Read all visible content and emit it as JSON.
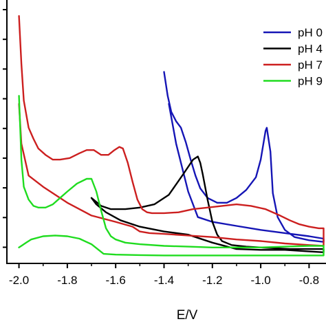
{
  "chart_data": {
    "type": "line",
    "title": "",
    "xlabel": "E/V",
    "ylabel": "",
    "xlim": [
      -2.05,
      -0.73
    ],
    "ylim": [
      0,
      16.5
    ],
    "x_ticks": [
      -2.0,
      -1.8,
      -1.6,
      -1.4,
      -1.2,
      -1.0,
      -0.8
    ],
    "x_tick_labels": [
      "-2.0",
      "-1.8",
      "-1.6",
      "-1.4",
      "-1.2",
      "-1.0",
      "-0.8"
    ],
    "y_tick_count": 9,
    "y_tick_labels_shown": false,
    "grid": false,
    "legend_position": "top-right",
    "series": [
      {
        "name": "pH 0",
        "color": "#1515b5",
        "x": [
          -1.4,
          -1.385,
          -1.37,
          -1.35,
          -1.33,
          -1.31,
          -1.29,
          -1.27,
          -1.25,
          -1.22,
          -1.18,
          -1.14,
          -1.1,
          -1.06,
          -1.02,
          -1.0,
          -0.98,
          -0.975,
          -0.96,
          -0.95,
          -0.93,
          -0.9,
          -0.86,
          -0.8,
          -0.74,
          -0.74,
          -0.8,
          -0.9,
          -1.0,
          -1.1,
          -1.2,
          -1.26,
          -1.3,
          -1.35,
          -1.38
        ],
        "y": [
          12.0,
          10.5,
          9.5,
          8.9,
          8.5,
          7.6,
          6.5,
          5.5,
          4.7,
          4.1,
          3.8,
          3.8,
          4.1,
          4.6,
          5.4,
          6.5,
          8.3,
          8.5,
          7.0,
          4.4,
          2.9,
          2.1,
          1.65,
          1.45,
          1.35,
          1.55,
          1.7,
          1.9,
          2.1,
          2.35,
          2.6,
          2.9,
          4.5,
          7.5,
          10.0
        ]
      },
      {
        "name": "pH 4",
        "color": "#000000",
        "x": [
          -1.7,
          -1.66,
          -1.62,
          -1.56,
          -1.5,
          -1.44,
          -1.38,
          -1.32,
          -1.28,
          -1.26,
          -1.25,
          -1.24,
          -1.22,
          -1.2,
          -1.18,
          -1.16,
          -1.12,
          -1.06,
          -1.0,
          -0.94,
          -0.88,
          -0.82,
          -0.76,
          -0.74,
          -0.74,
          -0.8,
          -0.9,
          -1.0,
          -1.1,
          -1.2,
          -1.3,
          -1.4,
          -1.5,
          -1.58,
          -1.64,
          -1.68,
          -1.7
        ],
        "y": [
          4.1,
          3.6,
          3.4,
          3.4,
          3.5,
          3.7,
          4.3,
          5.6,
          6.5,
          6.7,
          6.3,
          5.6,
          4.0,
          2.6,
          1.8,
          1.4,
          1.15,
          1.05,
          1.0,
          0.95,
          0.9,
          0.9,
          0.9,
          0.9,
          0.7,
          0.75,
          0.85,
          0.85,
          0.9,
          1.3,
          1.8,
          2.0,
          2.3,
          2.7,
          3.2,
          3.7,
          4.1
        ]
      },
      {
        "name": "pH 7",
        "color": "#cc1f1f",
        "x": [
          -2.0,
          -1.99,
          -1.98,
          -1.96,
          -1.94,
          -1.92,
          -1.89,
          -1.86,
          -1.83,
          -1.79,
          -1.75,
          -1.72,
          -1.69,
          -1.66,
          -1.63,
          -1.605,
          -1.585,
          -1.57,
          -1.55,
          -1.53,
          -1.51,
          -1.49,
          -1.47,
          -1.45,
          -1.4,
          -1.34,
          -1.28,
          -1.22,
          -1.16,
          -1.1,
          -1.04,
          -0.98,
          -0.92,
          -0.88,
          -0.84,
          -0.8,
          -0.76,
          -0.74,
          -0.74,
          -0.8,
          -0.9,
          -1.0,
          -1.1,
          -1.2,
          -1.3,
          -1.4,
          -1.46,
          -1.5,
          -1.53,
          -1.6,
          -1.7,
          -1.8,
          -1.9,
          -1.96,
          -1.99,
          -2.0
        ],
        "y": [
          15.5,
          12.5,
          10.2,
          8.5,
          7.8,
          7.2,
          6.8,
          6.5,
          6.5,
          6.6,
          6.9,
          7.1,
          7.1,
          6.8,
          6.8,
          7.1,
          7.3,
          7.2,
          6.3,
          5.1,
          4.0,
          3.4,
          3.2,
          3.15,
          3.15,
          3.2,
          3.4,
          3.5,
          3.6,
          3.7,
          3.6,
          3.4,
          3.0,
          2.7,
          2.45,
          2.3,
          2.2,
          2.2,
          1.1,
          1.15,
          1.25,
          1.4,
          1.5,
          1.65,
          1.75,
          1.85,
          1.9,
          2.0,
          2.3,
          2.6,
          3.0,
          3.8,
          4.8,
          5.5,
          7.5,
          10.0
        ]
      },
      {
        "name": "pH 9",
        "color": "#1fdc1f",
        "x": [
          -2.0,
          -1.99,
          -1.98,
          -1.96,
          -1.94,
          -1.92,
          -1.89,
          -1.86,
          -1.83,
          -1.8,
          -1.76,
          -1.72,
          -1.7,
          -1.68,
          -1.66,
          -1.64,
          -1.62,
          -1.6,
          -1.56,
          -1.5,
          -1.4,
          -1.3,
          -1.2,
          -1.1,
          -1.0,
          -0.9,
          -0.8,
          -0.74,
          -0.74,
          -0.8,
          -0.9,
          -1.0,
          -1.1,
          -1.2,
          -1.3,
          -1.4,
          -1.5,
          -1.6,
          -1.65,
          -1.7,
          -1.75,
          -1.8,
          -1.85,
          -1.9,
          -1.95,
          -1.97,
          -1.99,
          -2.0
        ],
        "y": [
          10.5,
          6.5,
          4.8,
          4.0,
          3.6,
          3.5,
          3.5,
          3.7,
          4.1,
          4.5,
          5.0,
          5.3,
          5.3,
          4.5,
          3.3,
          2.2,
          1.7,
          1.5,
          1.3,
          1.2,
          1.1,
          1.05,
          1.0,
          1.0,
          1.0,
          1.05,
          1.1,
          1.1,
          0.5,
          0.5,
          0.5,
          0.5,
          0.5,
          0.5,
          0.5,
          0.5,
          0.52,
          0.55,
          0.6,
          1.2,
          1.55,
          1.7,
          1.75,
          1.7,
          1.5,
          1.3,
          1.1,
          1.0
        ]
      }
    ]
  }
}
